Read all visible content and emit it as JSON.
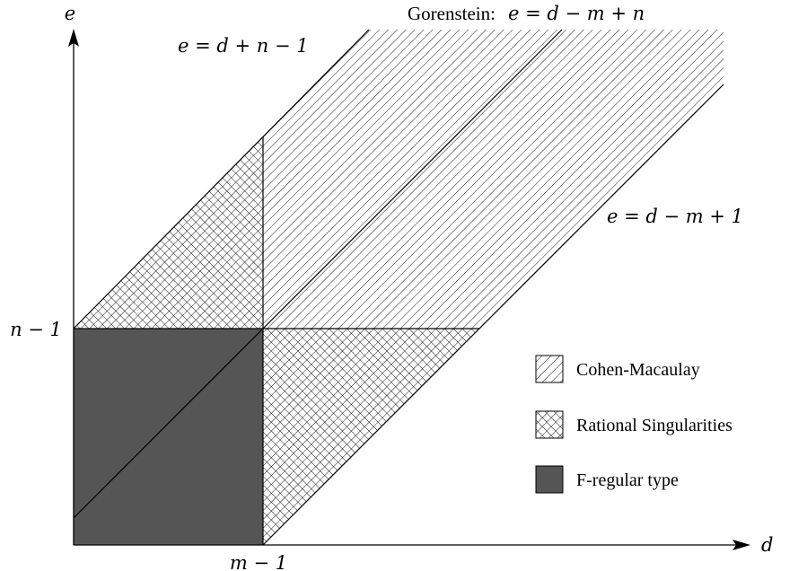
{
  "axes": {
    "x_label": "d",
    "y_label": "e",
    "x_tick": "m − 1",
    "y_tick": "n − 1"
  },
  "lines": {
    "upper": "e = d + n − 1",
    "gorenstein_prefix": "Gorenstein:",
    "gorenstein": "e = d − m + n",
    "lower": "e = d − m + 1"
  },
  "legend": [
    {
      "label": "Cohen-Macaulay",
      "pattern": "cohen-macaulay"
    },
    {
      "label": "Rational Singularities",
      "pattern": "rational"
    },
    {
      "label": "F-regular type",
      "pattern": "f-regular"
    }
  ],
  "colors": {
    "f_regular_fill": "#555555",
    "ink": "#000000"
  }
}
